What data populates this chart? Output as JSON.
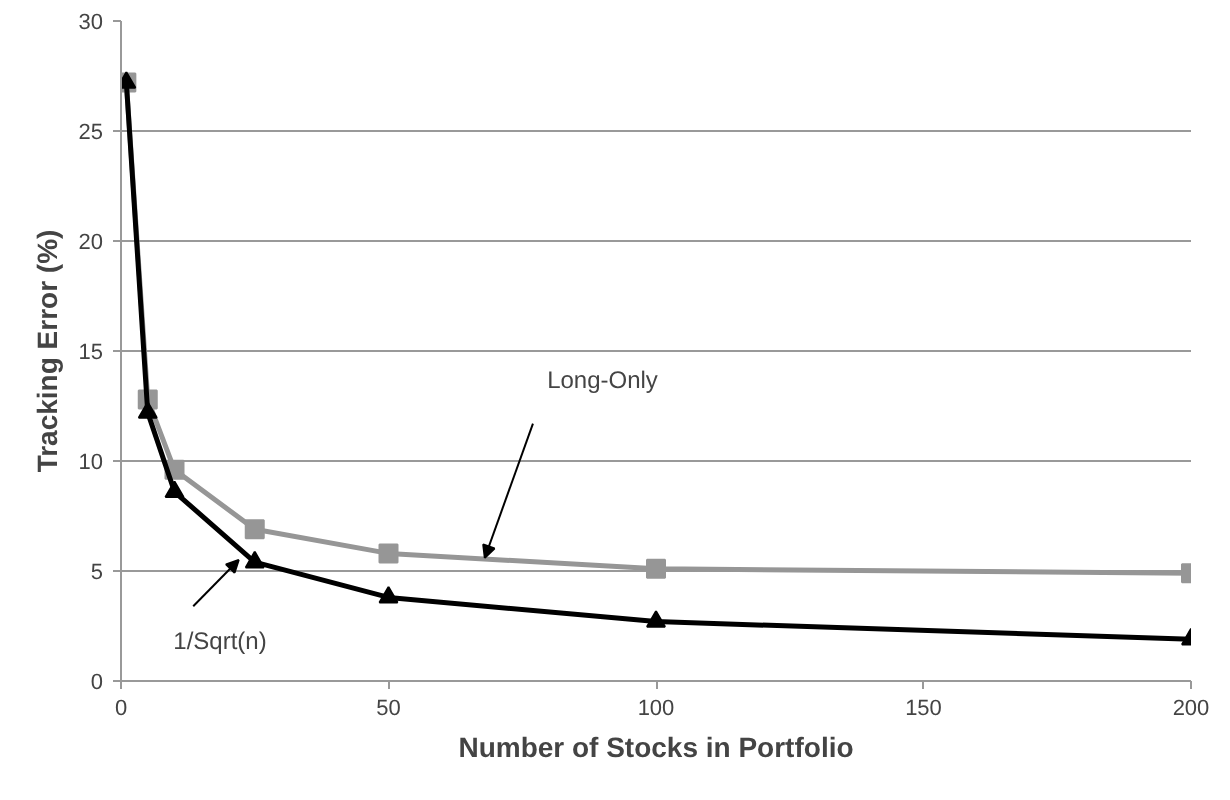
{
  "chart_data": {
    "type": "line",
    "xlabel": "Number of Stocks in Portfolio",
    "ylabel": "Tracking Error (%)",
    "x": [
      1,
      5,
      10,
      25,
      50,
      100,
      200
    ],
    "series": [
      {
        "color": "#969696",
        "marker": "square",
        "values": [
          27.2,
          12.8,
          9.6,
          6.9,
          5.8,
          5.1,
          4.9
        ]
      },
      {
        "color": "#000000",
        "marker": "triangle",
        "values": [
          27.2,
          12.2,
          8.6,
          5.4,
          3.8,
          2.7,
          1.9
        ]
      }
    ],
    "annotations": [
      "Long-Only",
      {
        "text": "1/Sqrt(n)",
        "x": 22,
        "y": 5.5
      }
    ],
    "xlim": [
      0,
      200
    ],
    "xticks": [
      0,
      50,
      100,
      150,
      200
    ],
    "ylim": [
      0,
      30
    ],
    "yticks": [
      0,
      5,
      10,
      15,
      20,
      25,
      30
    ],
    "grid": "y"
  }
}
